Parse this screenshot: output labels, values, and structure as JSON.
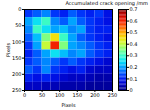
{
  "chart_data": {
    "type": "heatmap",
    "title": "Accumulated crack opening /mm",
    "x_label": "Pixels",
    "y_label": "Pixels",
    "xlim": [
      0,
      250
    ],
    "ylim": [
      0,
      250
    ],
    "xticks": [
      0,
      50,
      100,
      150,
      200,
      250
    ],
    "yticks": [
      0,
      50,
      100,
      150,
      200,
      250
    ],
    "cells": [
      [
        0.12,
        0.15,
        0.18,
        0.12,
        0.1,
        0.15,
        0.12,
        0.1,
        0.12,
        0.08
      ],
      [
        0.2,
        0.25,
        0.3,
        0.18,
        0.15,
        0.2,
        0.15,
        0.12,
        0.1,
        0.08
      ],
      [
        0.18,
        0.3,
        0.25,
        0.2,
        0.22,
        0.18,
        0.2,
        0.12,
        0.1,
        0.1
      ],
      [
        0.15,
        0.22,
        0.35,
        0.45,
        0.3,
        0.2,
        0.15,
        0.12,
        0.1,
        0.08
      ],
      [
        0.12,
        0.2,
        0.4,
        0.6,
        0.35,
        0.2,
        0.18,
        0.15,
        0.12,
        0.1
      ],
      [
        0.1,
        0.15,
        0.2,
        0.25,
        0.22,
        0.18,
        0.2,
        0.15,
        0.12,
        0.1
      ],
      [
        0.12,
        0.15,
        0.18,
        0.15,
        0.12,
        0.15,
        0.12,
        0.1,
        0.08,
        0.06
      ],
      [
        0.15,
        0.12,
        0.18,
        0.12,
        0.1,
        0.08,
        0.1,
        0.06,
        0.05,
        0.05
      ],
      [
        0.1,
        0.08,
        0.1,
        0.08,
        0.06,
        0.05,
        0.05,
        0.04,
        0.03,
        0.03
      ],
      [
        0.05,
        0.05,
        0.04,
        0.04,
        0.03,
        0.03,
        0.03,
        0.02,
        0.02,
        0.02
      ]
    ],
    "colorbar_range": [
      0,
      0.7
    ],
    "colorbar_ticks": [
      0,
      0.1,
      0.2,
      0.3,
      0.4,
      0.5,
      0.6,
      0.7
    ]
  }
}
